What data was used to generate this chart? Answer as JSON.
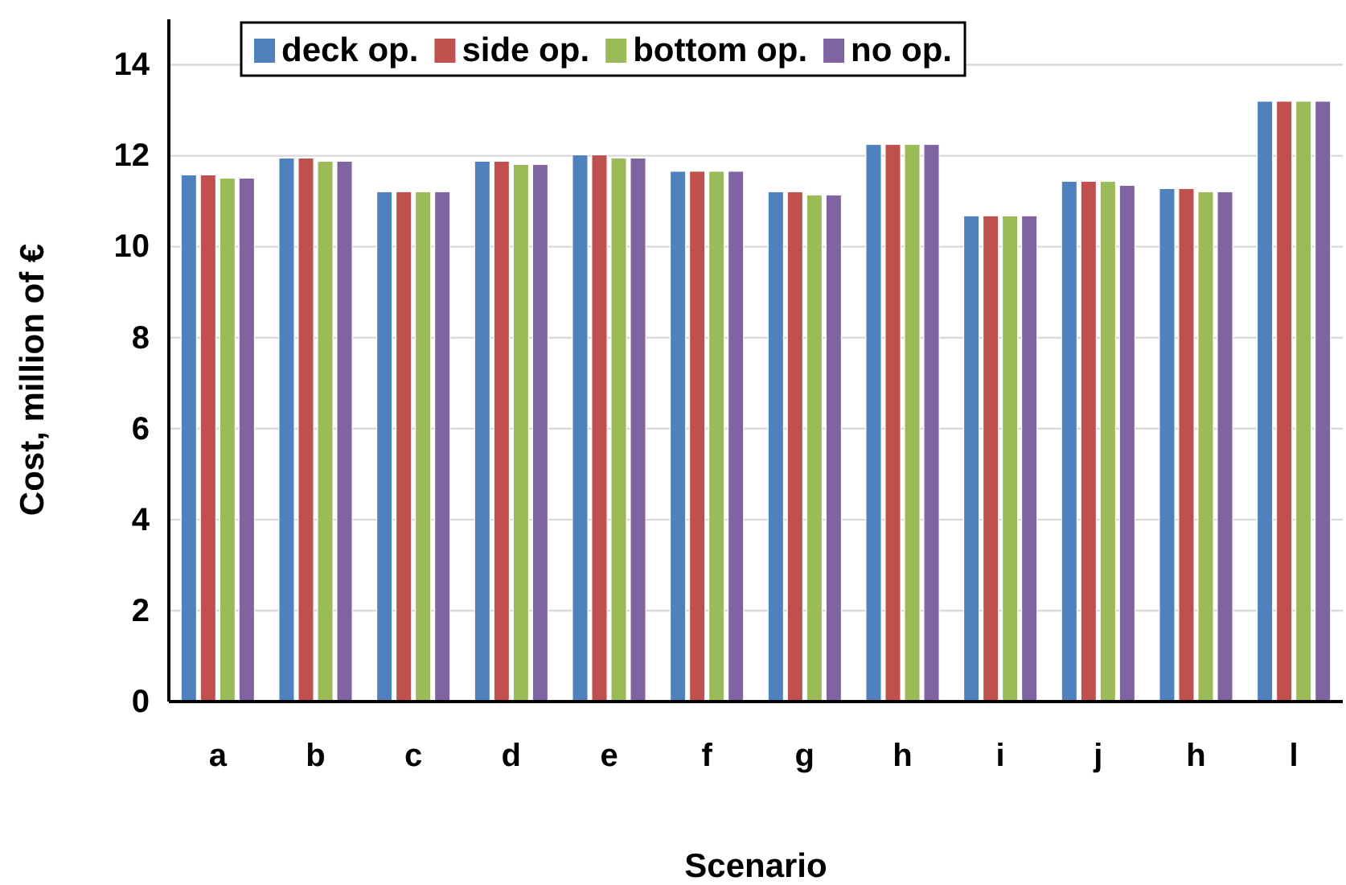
{
  "chart_data": {
    "type": "bar",
    "xlabel": "Scenario",
    "ylabel": "Cost, million of €",
    "categories": [
      "a",
      "b",
      "c",
      "d",
      "e",
      "f",
      "g",
      "h",
      "i",
      "j",
      "h",
      "l"
    ],
    "series": [
      {
        "name": "deck op.",
        "color": "#4f81bd",
        "values": [
          11.58,
          11.95,
          11.21,
          11.88,
          12.02,
          11.66,
          11.21,
          12.25,
          10.68,
          11.44,
          11.28,
          13.2
        ]
      },
      {
        "name": "side op.",
        "color": "#c0504d",
        "values": [
          11.58,
          11.95,
          11.21,
          11.88,
          12.02,
          11.66,
          11.21,
          12.25,
          10.68,
          11.44,
          11.28,
          13.2
        ]
      },
      {
        "name": "bottom op.",
        "color": "#9bbb59",
        "values": [
          11.51,
          11.88,
          11.21,
          11.81,
          11.95,
          11.66,
          11.14,
          12.25,
          10.68,
          11.44,
          11.21,
          13.2
        ]
      },
      {
        "name": "no op.",
        "color": "#8064a2",
        "values": [
          11.51,
          11.88,
          11.21,
          11.81,
          11.95,
          11.66,
          11.14,
          12.25,
          10.68,
          11.35,
          11.21,
          13.2
        ]
      }
    ],
    "ylim": [
      0,
      15
    ],
    "yticks": [
      0,
      2,
      4,
      6,
      8,
      10,
      12,
      14
    ],
    "grid": "y",
    "legend": "top"
  }
}
